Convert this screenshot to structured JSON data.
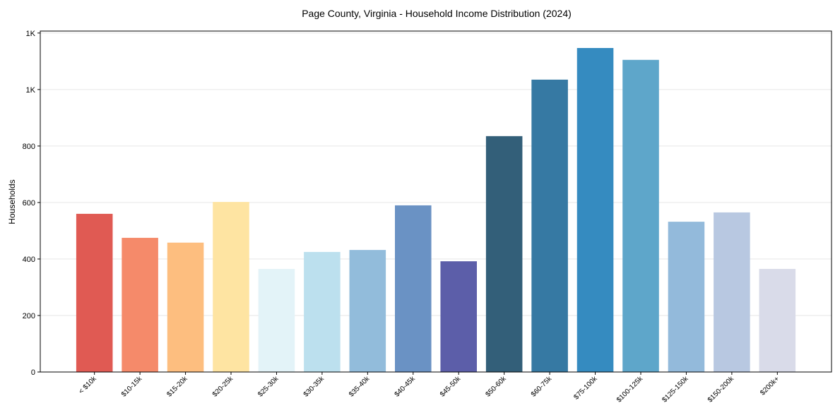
{
  "chart_data": {
    "type": "bar",
    "title": "Page County, Virginia - Household Income Distribution (2024)",
    "xlabel": "",
    "ylabel": "Households",
    "ylim": [
      0,
      1207
    ],
    "grid": true,
    "categories": [
      "< $10k",
      "$10-15k",
      "$15-20k",
      "$20-25k",
      "$25-30k",
      "$30-35k",
      "$35-40k",
      "$40-45k",
      "$45-50k",
      "$50-60k",
      "$60-75k",
      "$75-100k",
      "$100-125k",
      "$125-150k",
      "$150-200k",
      "$200k+"
    ],
    "values": [
      560,
      475,
      458,
      602,
      365,
      425,
      432,
      590,
      392,
      835,
      1035,
      1147,
      1105,
      532,
      565,
      365
    ],
    "colors": [
      "#e05a53",
      "#f58a6a",
      "#fdbe7f",
      "#fee4a2",
      "#e3f3f8",
      "#bce0ee",
      "#92bcdb",
      "#6a92c4",
      "#5c5ea9",
      "#335f79",
      "#3679a3",
      "#358bc0",
      "#5ea6ca",
      "#93badb",
      "#b8c8e1",
      "#d9dbe9"
    ],
    "yticks": [
      {
        "value": 0,
        "label": "0"
      },
      {
        "value": 200,
        "label": "200"
      },
      {
        "value": 400,
        "label": "400"
      },
      {
        "value": 600,
        "label": "600"
      },
      {
        "value": 800,
        "label": "800"
      },
      {
        "value": 1000,
        "label": "1K"
      },
      {
        "value": 1200,
        "label": "1K"
      }
    ]
  }
}
